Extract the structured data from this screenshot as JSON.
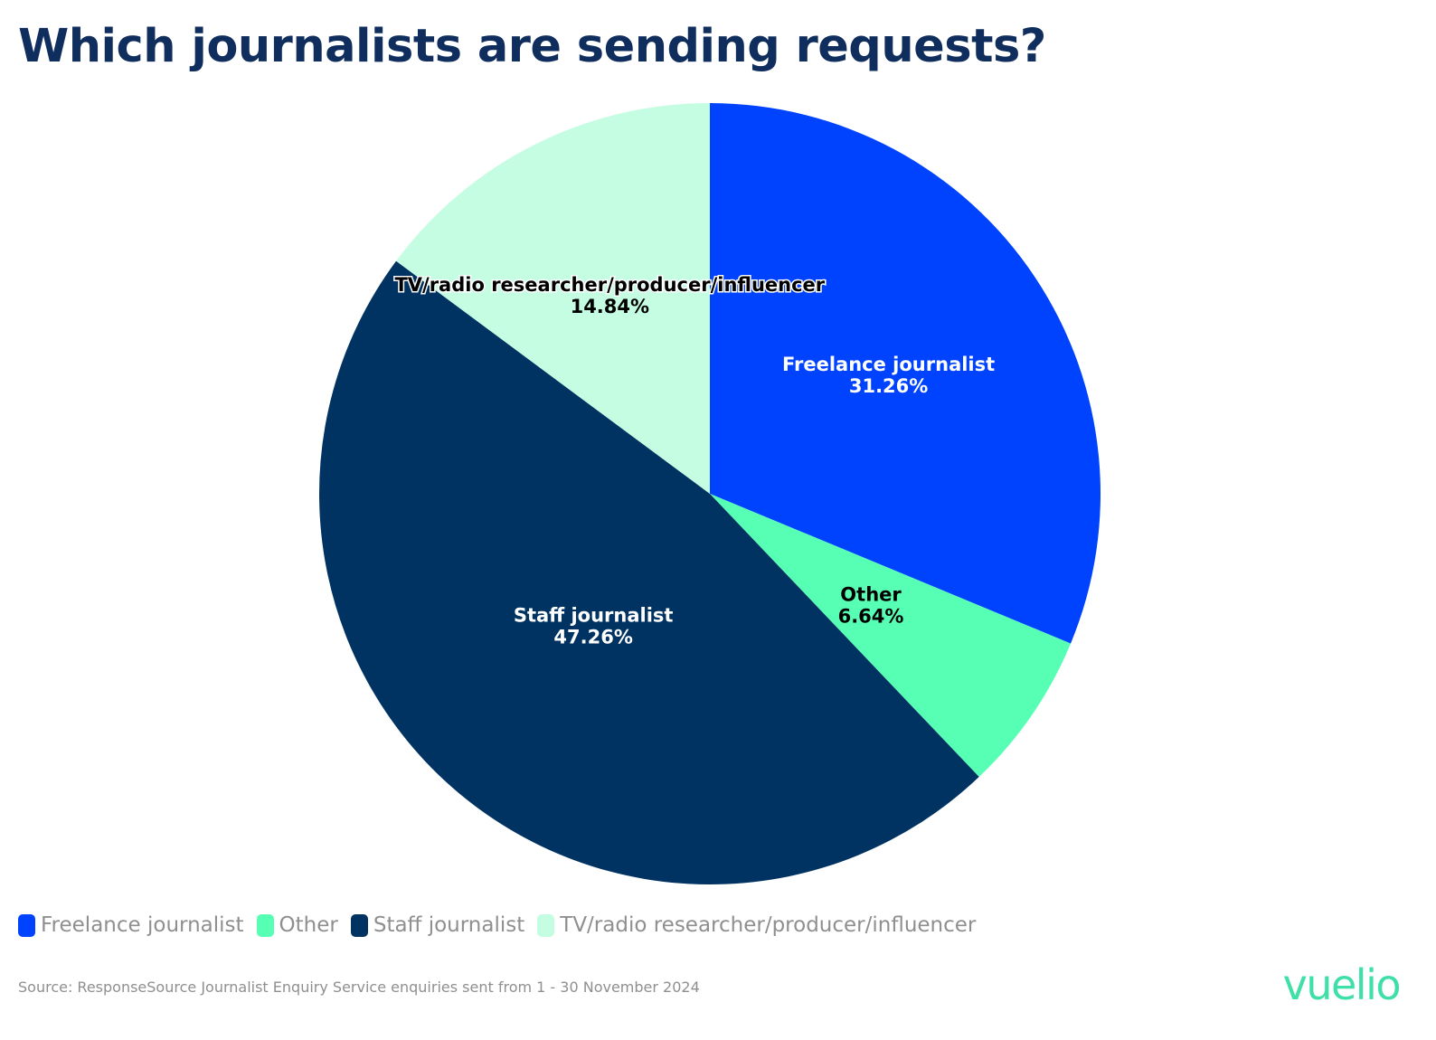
{
  "title": "Which journalists are sending requests?",
  "chart_data": {
    "type": "pie",
    "slices": [
      {
        "name": "Freelance journalist",
        "value": 31.26,
        "label": "31.26%",
        "color": "#0043ff",
        "text_color": "#ffffff"
      },
      {
        "name": "Other",
        "value": 6.64,
        "label": "6.64%",
        "color": "#57ffb4",
        "text_color": "#000000"
      },
      {
        "name": "Staff journalist",
        "value": 47.26,
        "label": "47.26%",
        "color": "#003362",
        "text_color": "#ffffff"
      },
      {
        "name": "TV/radio researcher/producer/influencer",
        "value": 14.84,
        "label": "14.84%",
        "color": "#c5fde3",
        "text_color": "#000000"
      }
    ],
    "start": "12 o'clock",
    "direction": "clockwise",
    "legend_position": "bottom-left"
  },
  "legend": [
    {
      "label": "Freelance journalist",
      "color": "#0043ff"
    },
    {
      "label": "Other",
      "color": "#57ffb4"
    },
    {
      "label": "Staff journalist",
      "color": "#003362"
    },
    {
      "label": "TV/radio researcher/producer/influencer",
      "color": "#c5fde3"
    }
  ],
  "source": "Source: ResponseSource Journalist Enquiry Service enquiries sent from 1 - 30 November 2024",
  "logo_text": "vuelio"
}
